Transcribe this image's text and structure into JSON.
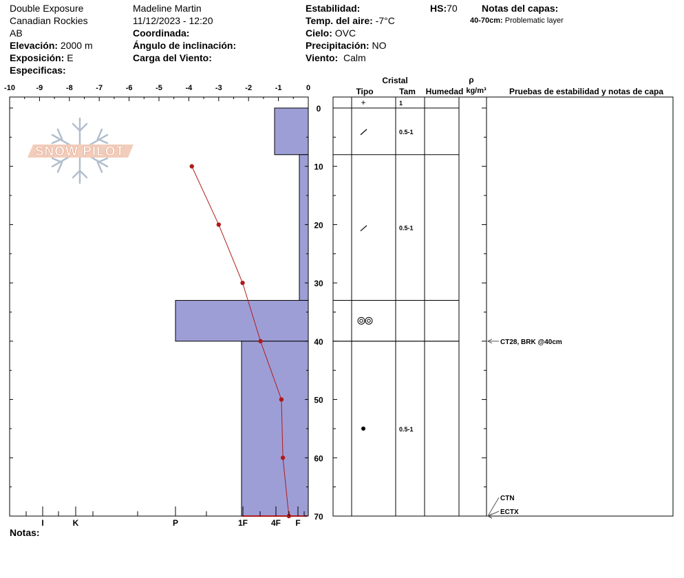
{
  "header": {
    "site_title": "Double Exposure",
    "range": "Canadian Rockies",
    "province": "AB",
    "elevation_label": "Elevación:",
    "elevation_value": "2000 m",
    "aspect_label": "Exposición:",
    "aspect_value": "E",
    "specifics_label": "Especificas:",
    "observer": "Madeline  Martin",
    "datetime": "11/12/2023 - 12:20",
    "coord_label": "Coordinada:",
    "slope_label": "Ángulo de inclinación:",
    "wind_load_label": "Carga del Viento:",
    "stability_label": "Estabilidad:",
    "air_temp_label": "Temp. del aire:",
    "air_temp_value": "-7°C",
    "sky_label": "Cielo:",
    "sky_value": "OVC",
    "precip_label": "Precipitación:",
    "precip_value": "NO",
    "wind_label": "Viento:",
    "wind_value": "Calm",
    "hs_label": "HS:",
    "hs_value": "70",
    "layer_notes_label": "Notas del capas:",
    "layer_note_range": "40-70cm:",
    "layer_note_text": "Problematic layer"
  },
  "logo": {
    "text": "SNOW PILOT"
  },
  "notes_label": "Notas:",
  "columns": {
    "crystal": "Cristal",
    "type": "Tipo",
    "size": "Tam",
    "moisture": "Humedad",
    "rho": "ρ",
    "density_unit": "kg/m³",
    "tests": "Pruebas de estabilidad y notas de capa"
  },
  "colors": {
    "hardness_fill": "#9e9ed6",
    "hardness_stroke": "#000000",
    "temp_line": "#b01a1a"
  },
  "chart_data": {
    "type": "snow-profile",
    "temperature_axis": {
      "ticks": [
        "-10",
        "-9",
        "-8",
        "-7",
        "-6",
        "-5",
        "-4",
        "-3",
        "-2",
        "-1",
        "0"
      ],
      "range": [
        -10,
        0
      ]
    },
    "depth_axis": {
      "ticks": [
        "0",
        "10",
        "20",
        "30",
        "40",
        "50",
        "60",
        "70"
      ],
      "range": [
        0,
        70
      ]
    },
    "hardness_axis": {
      "ticks": [
        "I",
        "K",
        "P",
        "1F",
        "4F",
        "F"
      ]
    },
    "temperature_profile": [
      {
        "depth": 10,
        "temp": -3.9
      },
      {
        "depth": 20,
        "temp": -3.0
      },
      {
        "depth": 30,
        "temp": -2.2
      },
      {
        "depth": 40,
        "temp": -1.6
      },
      {
        "depth": 50,
        "temp": -0.9
      },
      {
        "depth": 60,
        "temp": -0.85
      },
      {
        "depth": 70,
        "temp": -0.65
      }
    ],
    "hardness_layers": [
      {
        "top": 0,
        "bottom": 8,
        "hardness": "F-4F"
      },
      {
        "top": 8,
        "bottom": 33,
        "hardness": "F"
      },
      {
        "top": 33,
        "bottom": 40,
        "hardness": "P-"
      },
      {
        "top": 40,
        "bottom": 70,
        "hardness": "1F"
      }
    ],
    "crystal_layers": [
      {
        "top": 0,
        "bottom": 0,
        "symbol": "+",
        "size": "1"
      },
      {
        "top": 0,
        "bottom": 8,
        "symbol": "/",
        "size": "0.5-1"
      },
      {
        "top": 8,
        "bottom": 33,
        "symbol": "/",
        "size": "0.5-1"
      },
      {
        "top": 33,
        "bottom": 40,
        "symbol": "◎◎",
        "size": ""
      },
      {
        "top": 40,
        "bottom": 70,
        "symbol": "●",
        "size": "0.5-1"
      }
    ],
    "stability_tests": [
      {
        "depth": 40,
        "label": "CT28, BRK @40cm"
      },
      {
        "depth": 70,
        "label": "CTN"
      },
      {
        "depth": 70,
        "label": "ECTX"
      }
    ]
  }
}
